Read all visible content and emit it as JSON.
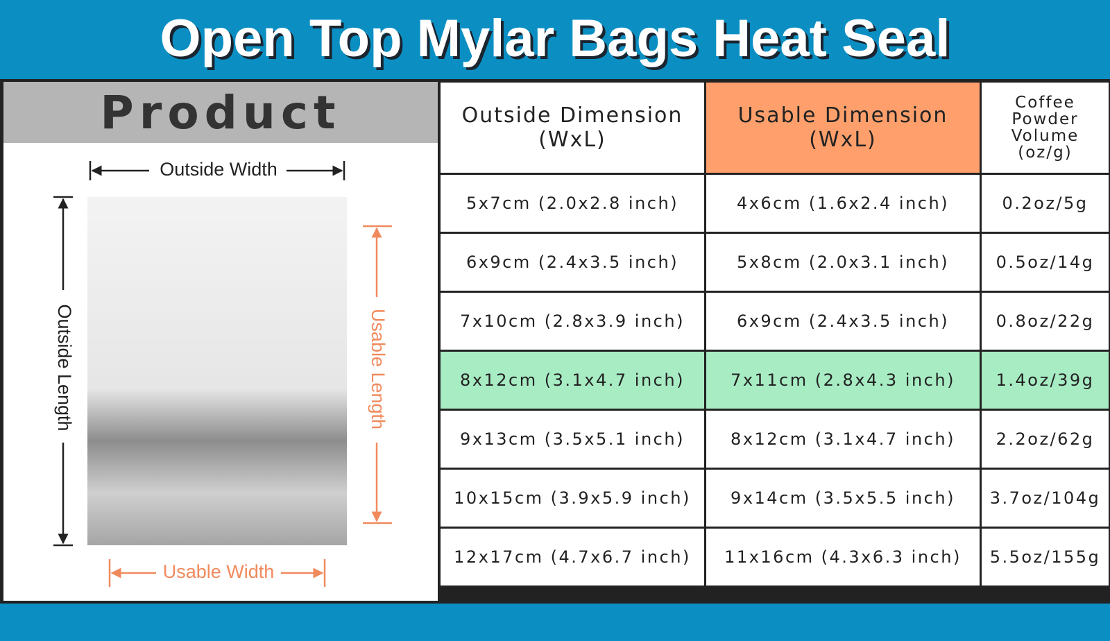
{
  "header": {
    "title": "Open Top Mylar Bags Heat Seal"
  },
  "product": {
    "title": "Product",
    "outside_width": "Outside Width",
    "outside_length": "Outside Length",
    "usable_length": "Usable Length",
    "usable_width": "Usable Width"
  },
  "table": {
    "columns": [
      "Outside Dimension (WxL)",
      "Usable Dimension (WxL)",
      "Coffee Powder Volume (oz/g)"
    ],
    "rows": [
      [
        "5x7cm (2.0x2.8 inch)",
        "4x6cm (1.6x2.4 inch)",
        "0.2oz/5g"
      ],
      [
        "6x9cm (2.4x3.5 inch)",
        "5x8cm (2.0x3.1 inch)",
        "0.5oz/14g"
      ],
      [
        "7x10cm (2.8x3.9 inch)",
        "6x9cm (2.4x3.5 inch)",
        "0.8oz/22g"
      ],
      [
        "8x12cm (3.1x4.7 inch)",
        "7x11cm (2.8x4.3 inch)",
        "1.4oz/39g"
      ],
      [
        "9x13cm (3.5x5.1 inch)",
        "8x12cm (3.1x4.7 inch)",
        "2.2oz/62g"
      ],
      [
        "10x15cm (3.9x5.9 inch)",
        "9x14cm (3.5x5.5 inch)",
        "3.7oz/104g"
      ],
      [
        "12x17cm (4.7x6.7 inch)",
        "11x16cm (4.3x6.3 inch)",
        "5.5oz/155g"
      ]
    ]
  }
}
